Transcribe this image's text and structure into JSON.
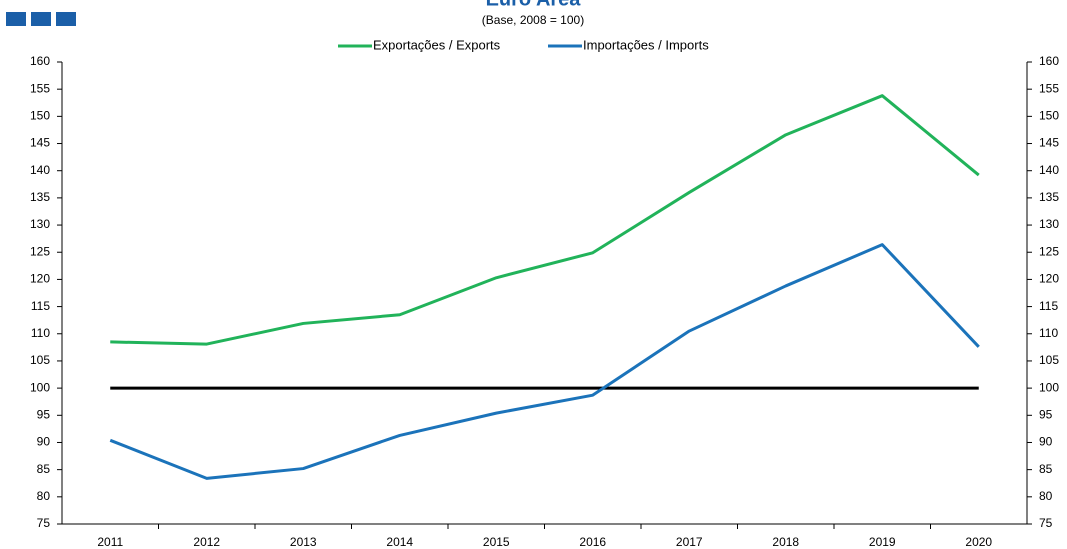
{
  "chart_data": {
    "type": "line",
    "title": "Euro Area",
    "subtitle": "(Base, 2008 = 100)",
    "categories": [
      "2011",
      "2012",
      "2013",
      "2014",
      "2015",
      "2016",
      "2017",
      "2018",
      "2019",
      "2020"
    ],
    "series": [
      {
        "name": "Exportações / Exports",
        "color": "#21b35a",
        "values": [
          108.5,
          108.1,
          111.9,
          113.5,
          120.3,
          124.9,
          136.0,
          146.6,
          153.8,
          139.2
        ]
      },
      {
        "name": "Importações / Imports",
        "color": "#1b73ba",
        "values": [
          90.4,
          83.4,
          85.2,
          91.3,
          95.4,
          98.7,
          110.5,
          118.8,
          126.4,
          107.6
        ]
      }
    ],
    "baseline": 100,
    "ylim": [
      75,
      160
    ],
    "yticks": [
      75,
      80,
      85,
      90,
      95,
      100,
      105,
      110,
      115,
      120,
      125,
      130,
      135,
      140,
      145,
      150,
      155,
      160
    ],
    "y2lim": [
      75,
      160
    ],
    "y2ticks": [
      75,
      80,
      85,
      90,
      95,
      100,
      105,
      110,
      115,
      120,
      125,
      130,
      135,
      140,
      145,
      150,
      155,
      160
    ],
    "legend": "top"
  }
}
